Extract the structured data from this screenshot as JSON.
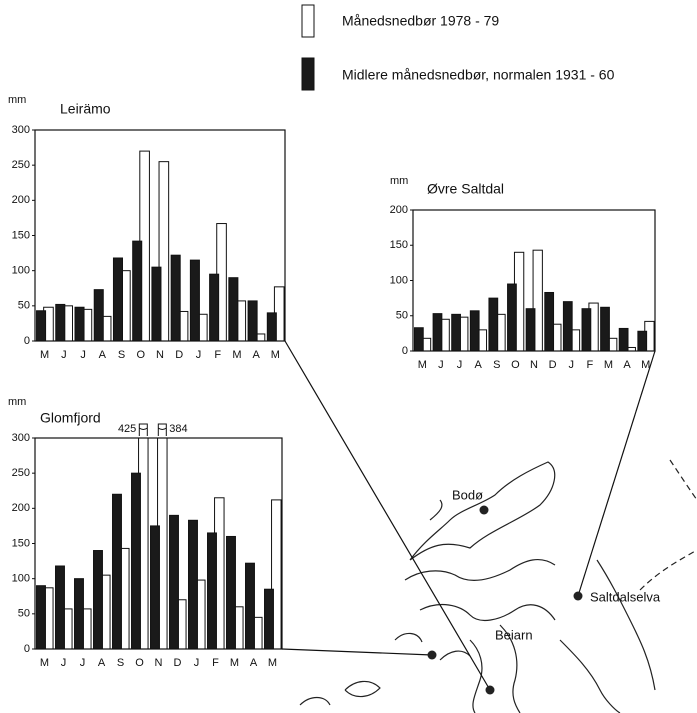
{
  "chart_data": [
    {
      "type": "bar",
      "title": "Leirämo",
      "y_label": "mm",
      "categories": [
        "M",
        "J",
        "J",
        "A",
        "S",
        "O",
        "N",
        "D",
        "J",
        "F",
        "M",
        "A",
        "M"
      ],
      "ylim": [
        0,
        300
      ],
      "yticks": [
        0,
        50,
        100,
        150,
        200,
        250,
        300
      ],
      "series": [
        {
          "name": "Månedsnedbør 1978 - 79",
          "color": "#ffffff",
          "values": [
            48,
            50,
            45,
            35,
            100,
            270,
            255,
            42,
            38,
            167,
            57,
            10,
            77
          ]
        },
        {
          "name": "Midlere månedsnedbør, normalen 1931 - 60",
          "color": "#1a1a1a",
          "values": [
            43,
            52,
            48,
            73,
            118,
            142,
            105,
            122,
            115,
            95,
            90,
            57,
            40
          ]
        }
      ]
    },
    {
      "type": "bar",
      "title": "Øvre Saltdal",
      "y_label": "mm",
      "categories": [
        "M",
        "J",
        "J",
        "A",
        "S",
        "O",
        "N",
        "D",
        "J",
        "F",
        "M",
        "A",
        "M"
      ],
      "ylim": [
        0,
        200
      ],
      "yticks": [
        0,
        50,
        100,
        150,
        200
      ],
      "series": [
        {
          "color": "#ffffff",
          "values": [
            18,
            45,
            48,
            30,
            52,
            140,
            143,
            38,
            30,
            68,
            18,
            5,
            42
          ]
        },
        {
          "color": "#1a1a1a",
          "values": [
            33,
            53,
            52,
            57,
            75,
            95,
            60,
            83,
            70,
            60,
            62,
            32,
            28
          ]
        }
      ]
    },
    {
      "type": "bar",
      "title": "Glomfjord",
      "y_label": "mm",
      "categories": [
        "M",
        "J",
        "J",
        "A",
        "S",
        "O",
        "N",
        "D",
        "J",
        "F",
        "M",
        "A",
        "M"
      ],
      "ylim": [
        0,
        300
      ],
      "yticks": [
        0,
        50,
        100,
        150,
        200,
        250,
        300
      ],
      "series": [
        {
          "color": "#ffffff",
          "values": [
            87,
            57,
            57,
            105,
            143,
            425,
            384,
            70,
            98,
            215,
            60,
            45,
            212
          ],
          "value_labels": [
            null,
            null,
            null,
            null,
            null,
            "425",
            "384",
            null,
            null,
            null,
            null,
            null,
            null
          ]
        },
        {
          "color": "#1a1a1a",
          "values": [
            90,
            118,
            100,
            140,
            220,
            250,
            175,
            190,
            183,
            165,
            160,
            122,
            85
          ]
        }
      ]
    }
  ],
  "map": {
    "labels": [
      "Bodø",
      "Beiarn",
      "Saltdalselva"
    ]
  }
}
